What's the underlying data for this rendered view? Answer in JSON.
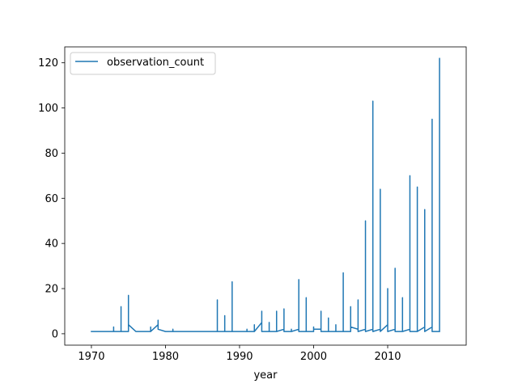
{
  "chart_data": {
    "type": "line",
    "xlabel": "year",
    "ylabel": "",
    "xlim": [
      1966.4,
      2020.6
    ],
    "ylim": [
      -5.05,
      127.05
    ],
    "xticks": [
      1970,
      1980,
      1990,
      2000,
      2010
    ],
    "xtick_labels": [
      "1970",
      "1980",
      "1990",
      "2000",
      "2010"
    ],
    "yticks": [
      0,
      20,
      40,
      60,
      80,
      100,
      120
    ],
    "ytick_labels": [
      "0",
      "20",
      "40",
      "60",
      "80",
      "100",
      "120"
    ],
    "grid": false,
    "legend_position": "upper-left",
    "colors": {
      "series": "#1f77b4",
      "axes": "#000000",
      "background": "#ffffff"
    },
    "series": [
      {
        "name": "observation_count",
        "x": [
          1970,
          1970,
          1973,
          1973,
          1973,
          1974,
          1974,
          1974,
          1975,
          1975,
          1975,
          1975,
          1976,
          1977,
          1978,
          1978,
          1978,
          1979,
          1979,
          1979,
          1980,
          1981,
          1981,
          1981,
          1982,
          1983,
          1984,
          1985,
          1986,
          1987,
          1987,
          1987,
          1988,
          1988,
          1988,
          1989,
          1989,
          1989,
          1990,
          1991,
          1991,
          1991,
          1992,
          1992,
          1992,
          1993,
          1993,
          1993,
          1994,
          1994,
          1994,
          1995,
          1995,
          1995,
          1996,
          1996,
          1996,
          1997,
          1997,
          1997,
          1998,
          1998,
          1998,
          1999,
          1999,
          1999,
          2000,
          2000,
          2000,
          2001,
          2001,
          2001,
          2002,
          2002,
          2002,
          2003,
          2003,
          2003,
          2004,
          2004,
          2004,
          2005,
          2005,
          2005,
          2006,
          2006,
          2006,
          2007,
          2007,
          2007,
          2008,
          2008,
          2008,
          2009,
          2009,
          2009,
          2010,
          2010,
          2010,
          2011,
          2011,
          2011,
          2012,
          2012,
          2012,
          2013,
          2013,
          2013,
          2014,
          2014,
          2014,
          2015,
          2015,
          2015,
          2016,
          2016,
          2016,
          2017,
          2017,
          2017
        ],
        "y": [
          1,
          1,
          1,
          3,
          1,
          1,
          12,
          1,
          1,
          17,
          4,
          4,
          1,
          1,
          1,
          3,
          1,
          4,
          6,
          2,
          1,
          1,
          2,
          1,
          1,
          1,
          1,
          1,
          1,
          1,
          15,
          1,
          1,
          8,
          1,
          1,
          23,
          1,
          1,
          1,
          2,
          1,
          1,
          4,
          1,
          5,
          10,
          1,
          1,
          5,
          1,
          1,
          10,
          1,
          2,
          11,
          1,
          1,
          2,
          1,
          2,
          24,
          1,
          1,
          16,
          1,
          1,
          3,
          2,
          2,
          10,
          1,
          1,
          7,
          1,
          1,
          4,
          1,
          1,
          27,
          1,
          1,
          12,
          3,
          2,
          15,
          1,
          2,
          50,
          1,
          2,
          103,
          1,
          2,
          64,
          1,
          4,
          20,
          1,
          2,
          29,
          1,
          1,
          16,
          1,
          2,
          70,
          1,
          1,
          65,
          1,
          3,
          55,
          1,
          3,
          95,
          1,
          1,
          122,
          1
        ]
      }
    ]
  }
}
